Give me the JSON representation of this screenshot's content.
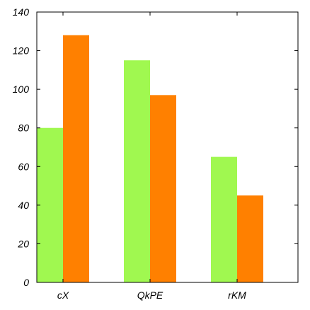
{
  "chart_data": {
    "type": "bar",
    "title": "",
    "xlabel": "",
    "ylabel": "",
    "categories": [
      "cX",
      "QkPE",
      "rKM"
    ],
    "series": [
      {
        "color": "#a0f850",
        "values": [
          80,
          115,
          65
        ]
      },
      {
        "color": "#ff8000",
        "values": [
          128,
          97,
          45
        ]
      }
    ],
    "ylim": [
      0,
      140
    ],
    "yticks": [
      0,
      20,
      40,
      60,
      80,
      100,
      120,
      140
    ],
    "yticks_text": [
      "0",
      "20",
      "40",
      "60",
      "80",
      "100",
      "120",
      "140"
    ],
    "grid": false,
    "legend": "none"
  }
}
